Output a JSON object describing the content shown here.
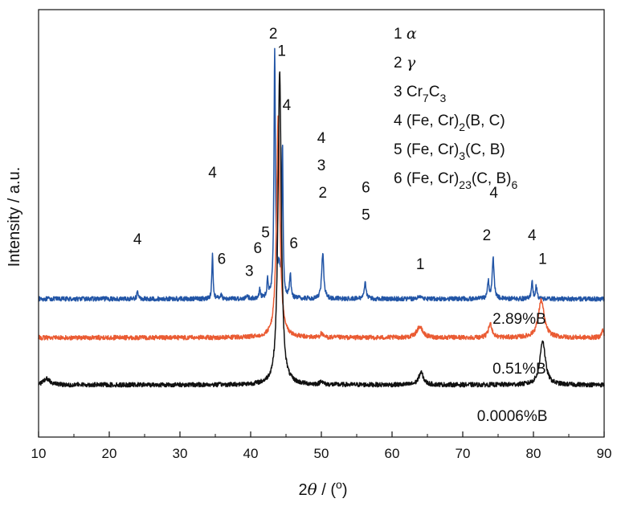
{
  "chart_data": {
    "type": "line",
    "xlabel_prefix": "2",
    "xlabel_theta": "θ",
    "xlabel_unit": " / (",
    "xlabel_degree": "o",
    "xlabel_close": ")",
    "ylabel": "Intensity / a.u.",
    "xlim": [
      10,
      90
    ],
    "x_ticks": [
      "10",
      "20",
      "30",
      "40",
      "50",
      "60",
      "70",
      "80",
      "90"
    ],
    "grid": false,
    "colors": {
      "blue": "#2255a6",
      "orange": "#ea5b33",
      "black": "#111111"
    },
    "series": [
      {
        "name": "2.89%B",
        "color": "#2255a6",
        "baseline": 0.78,
        "noise": 0.018,
        "peaks": [
          {
            "x": 24.0,
            "h": 0.15,
            "w": 0.12
          },
          {
            "x": 34.6,
            "h": 0.9,
            "w": 0.1
          },
          {
            "x": 35.8,
            "h": 0.12,
            "w": 0.1
          },
          {
            "x": 39.5,
            "h": 0.08,
            "w": 0.12
          },
          {
            "x": 41.3,
            "h": 0.2,
            "w": 0.1
          },
          {
            "x": 42.4,
            "h": 0.35,
            "w": 0.12
          },
          {
            "x": 43.4,
            "h": 4.95,
            "w": 0.12
          },
          {
            "x": 44.0,
            "h": 0.5,
            "w": 0.2
          },
          {
            "x": 44.5,
            "h": 3.05,
            "w": 0.1
          },
          {
            "x": 45.6,
            "h": 0.5,
            "w": 0.12
          },
          {
            "x": 50.2,
            "h": 0.9,
            "w": 0.18
          },
          {
            "x": 56.2,
            "h": 0.35,
            "w": 0.16
          },
          {
            "x": 64.0,
            "h": 0.06,
            "w": 0.3
          },
          {
            "x": 73.6,
            "h": 0.35,
            "w": 0.14
          },
          {
            "x": 74.3,
            "h": 0.8,
            "w": 0.16
          },
          {
            "x": 79.8,
            "h": 0.35,
            "w": 0.12
          },
          {
            "x": 80.4,
            "h": 0.25,
            "w": 0.14
          }
        ]
      },
      {
        "name": "0.51%B",
        "color": "#ea5b33",
        "baseline": 0.0,
        "noise": 0.018,
        "peaks": [
          {
            "x": 43.9,
            "h": 4.45,
            "w": 0.28
          },
          {
            "x": 50.0,
            "h": 0.08,
            "w": 0.2
          },
          {
            "x": 63.9,
            "h": 0.22,
            "w": 0.5
          },
          {
            "x": 73.9,
            "h": 0.28,
            "w": 0.3
          },
          {
            "x": 81.1,
            "h": 0.75,
            "w": 0.5
          },
          {
            "x": 89.8,
            "h": 0.15,
            "w": 0.2
          }
        ]
      },
      {
        "name": "0.0006%B",
        "color": "#111111",
        "baseline": -0.95,
        "noise": 0.018,
        "peaks": [
          {
            "x": 11.2,
            "h": 0.12,
            "w": 0.6
          },
          {
            "x": 44.1,
            "h": 6.3,
            "w": 0.28
          },
          {
            "x": 50.0,
            "h": 0.08,
            "w": 0.2
          },
          {
            "x": 64.1,
            "h": 0.25,
            "w": 0.4
          },
          {
            "x": 81.3,
            "h": 0.9,
            "w": 0.45
          }
        ]
      }
    ],
    "series_labels": [
      {
        "text": "2.89%B",
        "x": 78.0
      },
      {
        "text": "0.51%B",
        "x": 78.0
      },
      {
        "text": "0.0006%B",
        "x": 77.0
      }
    ],
    "legend": [
      {
        "num": "1",
        "symbol": "α"
      },
      {
        "num": "2",
        "symbol": "γ"
      },
      {
        "num": "3",
        "parts": [
          [
            "Cr",
            ""
          ],
          [
            "7",
            "sub"
          ],
          [
            "C",
            ""
          ],
          [
            "3",
            "sub"
          ]
        ]
      },
      {
        "num": "4",
        "parts": [
          [
            "(Fe, Cr)",
            ""
          ],
          [
            "2",
            "sub"
          ],
          [
            "(B, C)",
            ""
          ]
        ]
      },
      {
        "num": "5",
        "parts": [
          [
            "(Fe, Cr)",
            ""
          ],
          [
            "3",
            "sub"
          ],
          [
            "(C, B)",
            ""
          ]
        ]
      },
      {
        "num": "6",
        "parts": [
          [
            "(Fe, Cr)",
            ""
          ],
          [
            "23",
            "sub"
          ],
          [
            "(C, B)",
            ""
          ],
          [
            "6",
            "sub"
          ]
        ]
      }
    ],
    "peak_labels": [
      {
        "text": "4",
        "x": 24.0,
        "y": 1.88
      },
      {
        "text": "4",
        "x": 34.6,
        "y": 3.22
      },
      {
        "text": "6",
        "x": 35.9,
        "y": 1.48
      },
      {
        "text": "3",
        "x": 39.8,
        "y": 1.24
      },
      {
        "text": "6",
        "x": 41.0,
        "y": 1.7
      },
      {
        "text": "5",
        "x": 42.1,
        "y": 2.02
      },
      {
        "text": "2",
        "x": 43.2,
        "y": 6.02
      },
      {
        "text": "1",
        "x": 44.4,
        "y": 5.67
      },
      {
        "text": "4",
        "x": 45.1,
        "y": 4.58
      },
      {
        "text": "6",
        "x": 46.1,
        "y": 1.8
      },
      {
        "text": "4",
        "x": 50.0,
        "y": 3.92
      },
      {
        "text": "3",
        "x": 50.0,
        "y": 3.37
      },
      {
        "text": "2",
        "x": 50.2,
        "y": 2.82
      },
      {
        "text": "6",
        "x": 56.3,
        "y": 2.92
      },
      {
        "text": "5",
        "x": 56.3,
        "y": 2.37
      },
      {
        "text": "1",
        "x": 64.0,
        "y": 1.38
      },
      {
        "text": "4",
        "x": 74.4,
        "y": 2.82
      },
      {
        "text": "2",
        "x": 73.4,
        "y": 1.96
      },
      {
        "text": "4",
        "x": 79.8,
        "y": 1.96
      },
      {
        "text": "1",
        "x": 81.3,
        "y": 1.48
      }
    ]
  }
}
